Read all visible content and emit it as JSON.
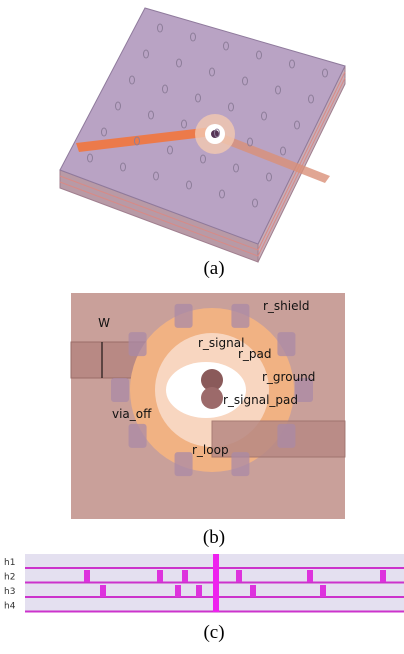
{
  "figure_a": {
    "caption": "(a)"
  },
  "figure_b": {
    "caption": "(b)",
    "labels": [
      "r_shield",
      "r_signal",
      "r_pad",
      "r_ground",
      "via_off",
      "r_signal_pad",
      "r_loop",
      "W"
    ]
  },
  "figure_c": {
    "caption": "(c)",
    "layers": [
      "h1",
      "h2",
      "h3",
      "h4"
    ]
  }
}
